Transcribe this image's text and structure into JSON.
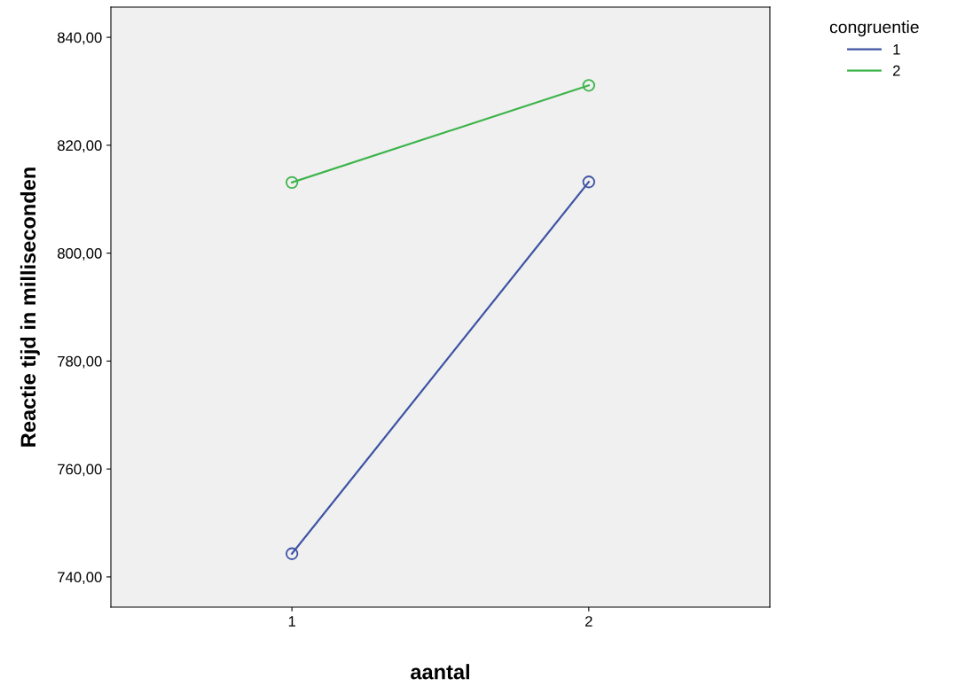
{
  "chart_data": {
    "type": "line",
    "xlabel": "aantal",
    "ylabel": "Reactie tijd in milliseconden",
    "legend_title": "congruentie",
    "categories": [
      "1",
      "2"
    ],
    "series": [
      {
        "name": "1",
        "color": "#3e53a4",
        "values": [
          744.3,
          813.2
        ]
      },
      {
        "name": "2",
        "color": "#3cb44a",
        "values": [
          813.1,
          831.1
        ]
      }
    ],
    "ylim": [
      734.4,
      845.6
    ],
    "yticks": [
      {
        "value": 740,
        "label": "740,00"
      },
      {
        "value": 760,
        "label": "760,00"
      },
      {
        "value": 780,
        "label": "780,00"
      },
      {
        "value": 800,
        "label": "800,00"
      },
      {
        "value": 820,
        "label": "820,00"
      },
      {
        "value": 840,
        "label": "840,00"
      }
    ],
    "grid": false,
    "legend": "top right",
    "marker": "circle",
    "line_style": "solid"
  }
}
